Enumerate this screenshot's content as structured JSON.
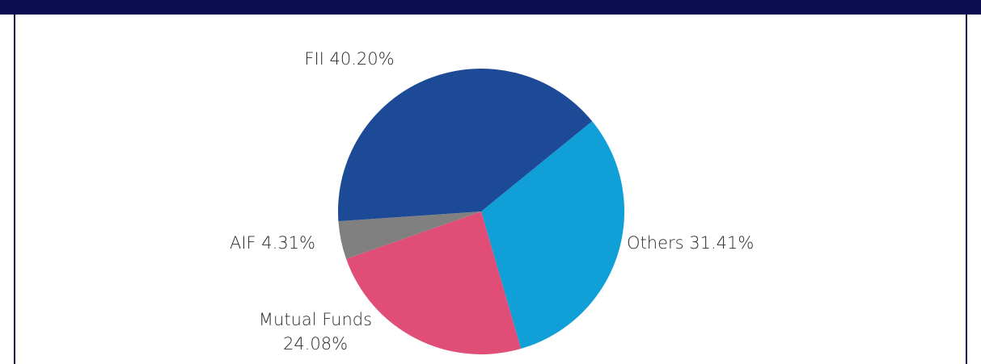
{
  "chart_data": {
    "type": "pie",
    "categories": [
      "Others",
      "Mutual Funds",
      "AIF",
      "FII"
    ],
    "values": [
      31.41,
      24.08,
      4.31,
      40.2
    ],
    "value_labels": [
      "31.41%",
      "24.08%",
      "4.31%",
      "40.20%"
    ],
    "colors": [
      "#119fd7",
      "#e04e77",
      "#808080",
      "#1c4a97"
    ]
  }
}
